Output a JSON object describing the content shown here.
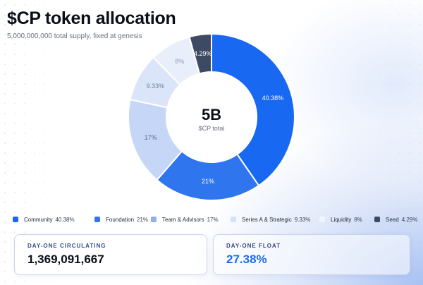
{
  "header": {
    "title": "$CP token allocation",
    "subtitle": "5,000,000,000 total supply, fixed at genesis"
  },
  "chart_data": {
    "type": "pie",
    "variant": "donut",
    "center": {
      "value": "5B",
      "label": "$CP total"
    },
    "slices": [
      {
        "name": "Community",
        "value": 40.38,
        "label": "40.38%",
        "color": "#1868f2",
        "label_color": "#ffffff"
      },
      {
        "name": "Foundation",
        "value": 21,
        "label": "21%",
        "color": "#2f76ee",
        "label_color": "#ffffff"
      },
      {
        "name": "Team & Advisors",
        "value": 17,
        "label": "17%",
        "color": "#c6d6f6",
        "label_color": "#5b6e96"
      },
      {
        "name": "Series A & Strategic",
        "value": 9.33,
        "label": "9.33%",
        "color": "#dbe5fa",
        "label_color": "#6b7ca0"
      },
      {
        "name": "Liquidity",
        "value": 8,
        "label": "8%",
        "color": "#e9eefb",
        "label_color": "#8d9bb8"
      },
      {
        "name": "Seed",
        "value": 4.29,
        "label": "4.29%",
        "color": "#3e4a63",
        "label_color": "#ffffff"
      }
    ],
    "legend": {
      "position": "bottom",
      "items": [
        {
          "name": "Community",
          "pct": "40.38%",
          "color": "#1868f2"
        },
        {
          "name": "Foundation",
          "pct": "21%",
          "color": "#2f76ee"
        },
        {
          "name": "Team & Advisors",
          "pct": "17%",
          "color": "#8fb0ee"
        },
        {
          "name": "Series A & Strategic",
          "pct": "9.33%",
          "color": "#d6e2f8"
        },
        {
          "name": "Liquidity",
          "pct": "8%",
          "color": "#f1f5fd"
        },
        {
          "name": "Seed",
          "pct": "4.29%",
          "color": "#3e4a63"
        }
      ]
    }
  },
  "stats": {
    "circulating": {
      "label": "DAY-ONE CIRCULATING",
      "value": "1,369,091,667"
    },
    "float": {
      "label": "DAY-ONE FLOAT",
      "value": "27.38%"
    }
  }
}
